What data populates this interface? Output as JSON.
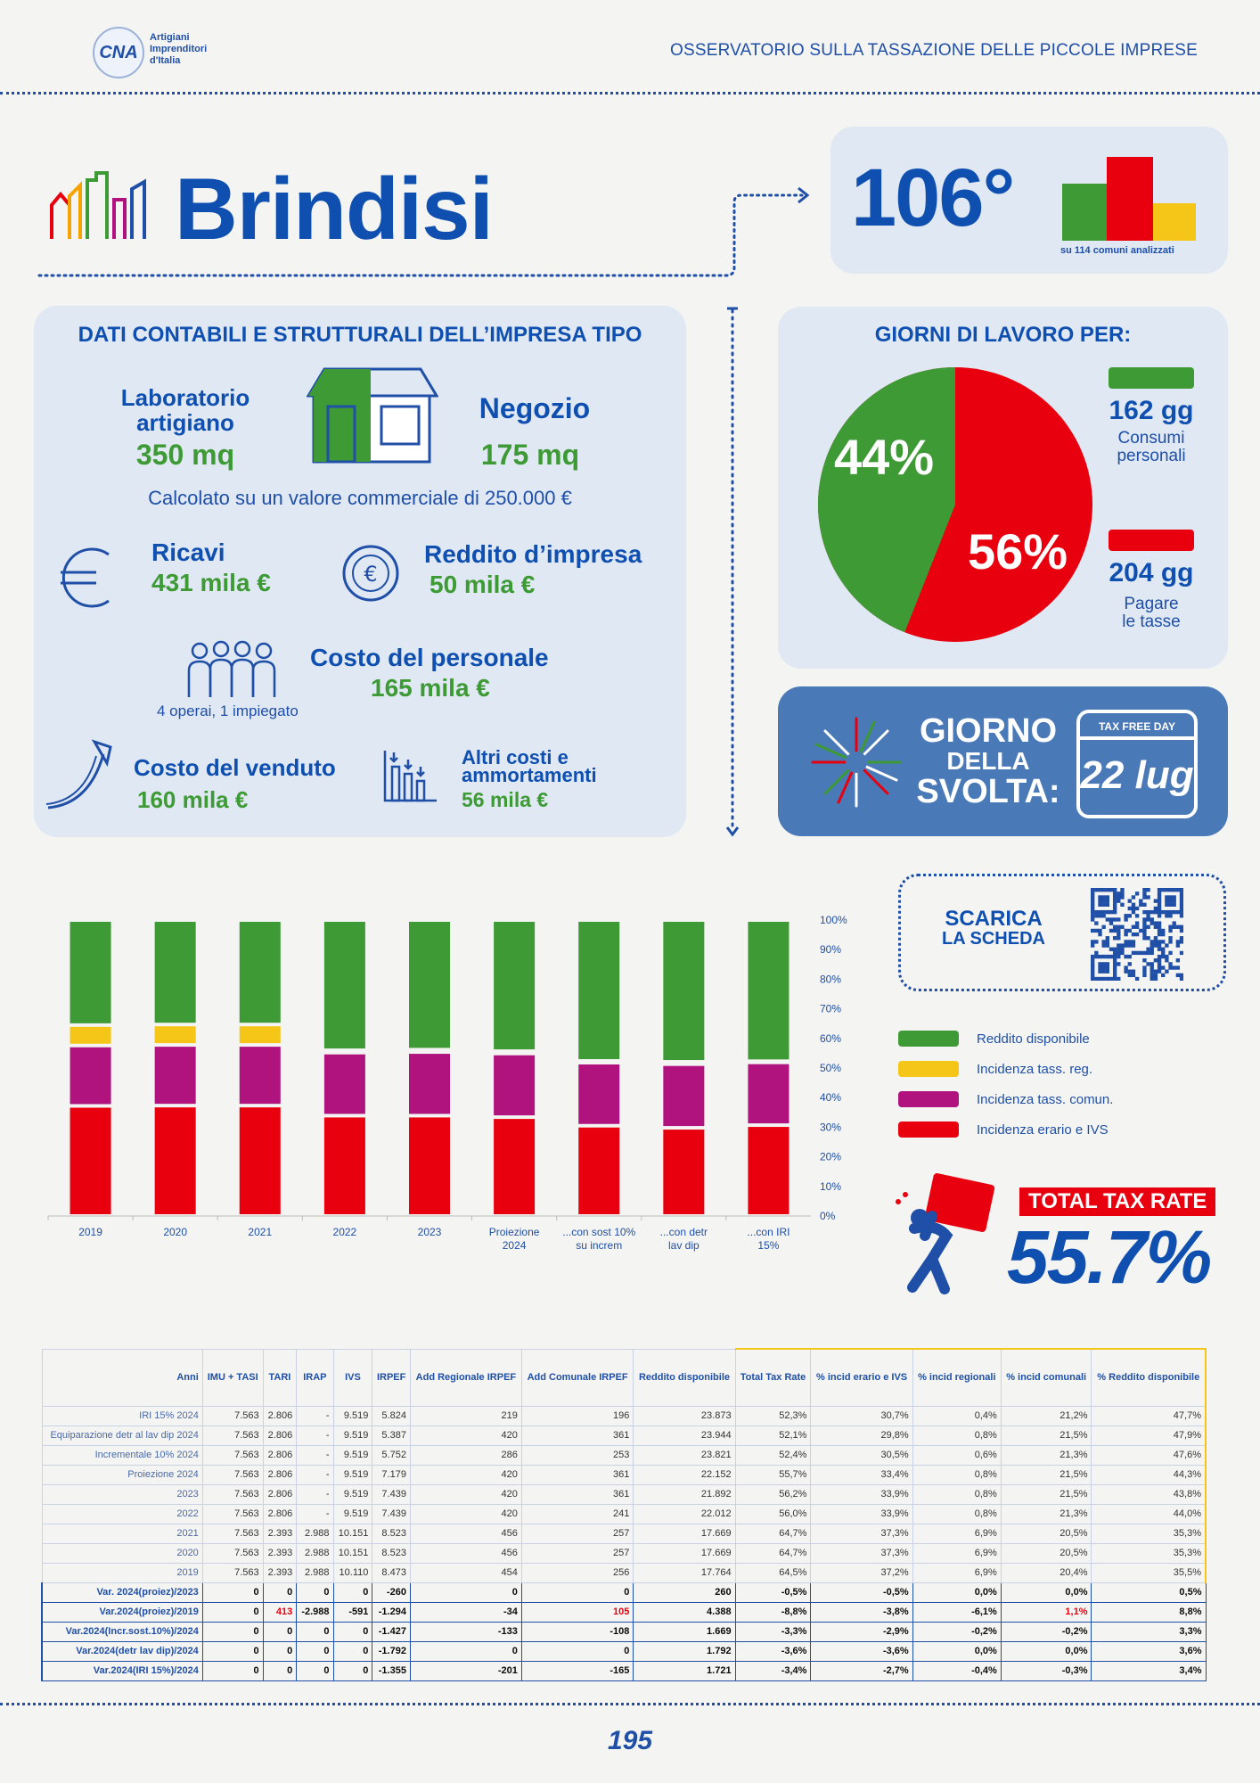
{
  "header": {
    "logo_mark": "CNA",
    "logo_text": [
      "Artigiani",
      "Imprenditori",
      "d'Italia"
    ],
    "title": "OSSERVATORIO SULLA TASSAZIONE DELLE PICCOLE IMPRESE"
  },
  "city": "Brindisi",
  "rank": {
    "value": "106°",
    "note": "su 114 comuni analizzati"
  },
  "company": {
    "title": "DATI CONTABILI E STRUTTURALI DELL’IMPRESA TIPO",
    "lab_label_1": "Laboratorio",
    "lab_label_2": "artigiano",
    "lab_value": "350 mq",
    "shop_label": "Negozio",
    "shop_value": "175 mq",
    "note": "Calcolato su un valore commerciale di 250.000 €",
    "revenue_label": "Ricavi",
    "revenue_value": "431 mila €",
    "income_label": "Reddito d’impresa",
    "income_value": "50 mila €",
    "staff_label": "Costo del personale",
    "staff_value": "165 mila €",
    "staff_note": "4 operai, 1 impiegato",
    "cogs_label": "Costo del venduto",
    "cogs_value": "160 mila €",
    "other_label_1": "Altri costi e",
    "other_label_2": "ammortamenti",
    "other_value": "56 mila €"
  },
  "days": {
    "title": "GIORNI DI LAVORO PER:",
    "pct_green": "44%",
    "pct_red": "56%",
    "green_value": 44,
    "green_days": "162 gg",
    "green_label_1": "Consumi",
    "green_label_2": "personali",
    "red_days": "204 gg",
    "red_label_1": "Pagare",
    "red_label_2": "le tasse"
  },
  "tax_free_day": {
    "line1": "GIORNO",
    "line2": "DELLA",
    "line3": "SVOLTA:",
    "calendar_header": "TAX FREE DAY",
    "date": "22 lug"
  },
  "download": {
    "line1": "SCARICA",
    "line2": "LA SCHEDA"
  },
  "total_tax": {
    "label": "TOTAL TAX RATE",
    "value": "55.7%"
  },
  "colors": {
    "green": "#3d9a35",
    "yellow": "#f5c518",
    "magenta": "#b0127e",
    "red": "#e8000e",
    "blue": "#0f4fb0"
  },
  "chart_data": {
    "type": "bar",
    "stacked": true,
    "categories": [
      "2019",
      "2020",
      "2021",
      "2022",
      "2023",
      "Proiezione 2024",
      "...con sost 10% su increm",
      "...con detr lav dip",
      "...con IRI 15%"
    ],
    "ylim": [
      0,
      100
    ],
    "yticks": [
      "0%",
      "10%",
      "20%",
      "30%",
      "40%",
      "50%",
      "60%",
      "70%",
      "80%",
      "90%",
      "100%"
    ],
    "series": [
      {
        "name": "Incidenza erario e IVS",
        "color": "#e8000e",
        "values": [
          37.2,
          37.3,
          37.3,
          33.9,
          33.9,
          33.4,
          30.5,
          29.8,
          30.7
        ]
      },
      {
        "name": "Incidenza tass. comun.",
        "color": "#b0127e",
        "values": [
          20.4,
          20.5,
          20.5,
          21.3,
          21.5,
          21.5,
          21.3,
          21.5,
          21.2
        ]
      },
      {
        "name": "Incidenza tass. reg.",
        "color": "#f5c518",
        "values": [
          6.9,
          6.9,
          6.9,
          0.8,
          0.8,
          0.8,
          0.6,
          0.8,
          0.4
        ]
      },
      {
        "name": "Reddito disponibile",
        "color": "#3d9a35",
        "values": [
          35.5,
          35.3,
          35.3,
          44.0,
          43.8,
          44.3,
          47.6,
          47.9,
          47.7
        ]
      }
    ],
    "legend": [
      "Reddito disponibile",
      "Incidenza tass. reg.",
      "Incidenza tass. comun.",
      "Incidenza erario e IVS"
    ]
  },
  "table": {
    "headers": [
      "Anni",
      "IMU + TASI",
      "TARI",
      "IRAP",
      "IVS",
      "IRPEF",
      "Add Regionale IRPEF",
      "Add Comunale IRPEF",
      "Reddito disponibile",
      "Total Tax Rate",
      "% incid erario e IVS",
      "% incid regionali",
      "% incid comunali",
      "% Reddito disponibile"
    ],
    "rows": [
      [
        "IRI 15% 2024",
        "7.563",
        "2.806",
        "-",
        "9.519",
        "5.824",
        "219",
        "196",
        "23.873",
        "52,3%",
        "30,7%",
        "0,4%",
        "21,2%",
        "47,7%"
      ],
      [
        "Equiparazione detr al lav dip 2024",
        "7.563",
        "2.806",
        "-",
        "9.519",
        "5.387",
        "420",
        "361",
        "23.944",
        "52,1%",
        "29,8%",
        "0,8%",
        "21,5%",
        "47,9%"
      ],
      [
        "Incrementale 10% 2024",
        "7.563",
        "2.806",
        "-",
        "9.519",
        "5.752",
        "286",
        "253",
        "23.821",
        "52,4%",
        "30,5%",
        "0,6%",
        "21,3%",
        "47,6%"
      ],
      [
        "Proiezione 2024",
        "7.563",
        "2.806",
        "-",
        "9.519",
        "7.179",
        "420",
        "361",
        "22.152",
        "55,7%",
        "33,4%",
        "0,8%",
        "21,5%",
        "44,3%"
      ],
      [
        "2023",
        "7.563",
        "2.806",
        "-",
        "9.519",
        "7.439",
        "420",
        "361",
        "21.892",
        "56,2%",
        "33,9%",
        "0,8%",
        "21,5%",
        "43,8%"
      ],
      [
        "2022",
        "7.563",
        "2.806",
        "-",
        "9.519",
        "7.439",
        "420",
        "241",
        "22.012",
        "56,0%",
        "33,9%",
        "0,8%",
        "21,3%",
        "44,0%"
      ],
      [
        "2021",
        "7.563",
        "2.393",
        "2.988",
        "10.151",
        "8.523",
        "456",
        "257",
        "17.669",
        "64,7%",
        "37,3%",
        "6,9%",
        "20,5%",
        "35,3%"
      ],
      [
        "2020",
        "7.563",
        "2.393",
        "2.988",
        "10.151",
        "8.523",
        "456",
        "257",
        "17.669",
        "64,7%",
        "37,3%",
        "6,9%",
        "20,5%",
        "35,3%"
      ],
      [
        "2019",
        "7.563",
        "2.393",
        "2.988",
        "10.110",
        "8.473",
        "454",
        "256",
        "17.764",
        "64,5%",
        "37,2%",
        "6,9%",
        "20,4%",
        "35,5%"
      ]
    ],
    "var_rows": [
      [
        "Var. 2024(proiez)/2023",
        "0",
        "0",
        "0",
        "0",
        "-260",
        "0",
        "0",
        "260",
        "-0,5%",
        "-0,5%",
        "0,0%",
        "0,0%",
        "0,5%"
      ],
      [
        "Var.2024(proiez)/2019",
        "0",
        "413",
        "-2.988",
        "-591",
        "-1.294",
        "-34",
        "105",
        "4.388",
        "-8,8%",
        "-3,8%",
        "-6,1%",
        "1,1%",
        "8,8%"
      ],
      [
        "Var.2024(Incr.sost.10%)/2024",
        "0",
        "0",
        "0",
        "0",
        "-1.427",
        "-133",
        "-108",
        "1.669",
        "-3,3%",
        "-2,9%",
        "-0,2%",
        "-0,2%",
        "3,3%"
      ],
      [
        "Var.2024(detr lav dip)/2024",
        "0",
        "0",
        "0",
        "0",
        "-1.792",
        "0",
        "0",
        "1.792",
        "-3,6%",
        "-3,6%",
        "0,0%",
        "0,0%",
        "3,6%"
      ],
      [
        "Var.2024(IRI 15%)/2024",
        "0",
        "0",
        "0",
        "0",
        "-1.355",
        "-201",
        "-165",
        "1.721",
        "-3,4%",
        "-2,7%",
        "-0,4%",
        "-0,3%",
        "3,4%"
      ]
    ]
  },
  "page_number": "195"
}
